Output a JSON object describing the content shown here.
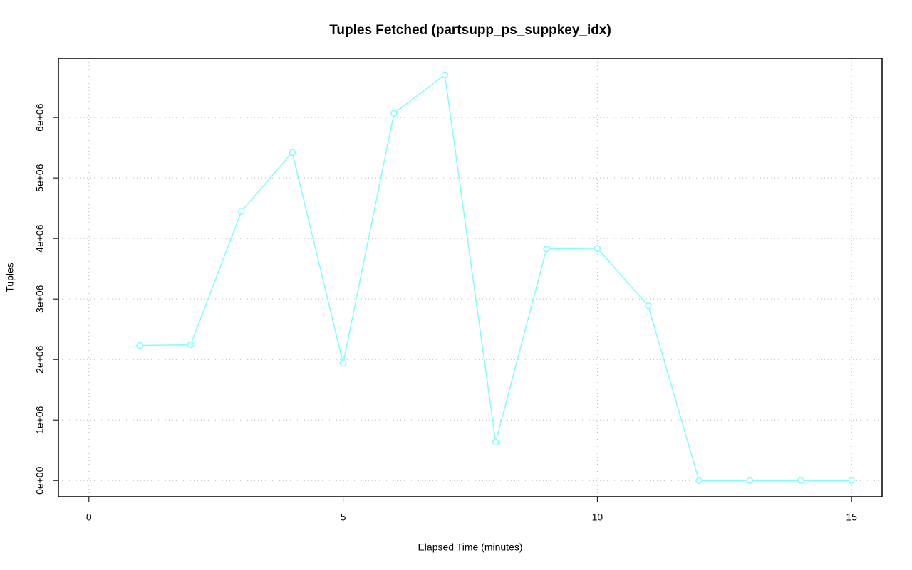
{
  "chart_data": {
    "type": "line",
    "title": "Tuples Fetched (partsupp_ps_suppkey_idx)",
    "x_label": "Elapsed Time (minutes)",
    "y_label": "Tuples",
    "x": [
      1,
      2,
      3,
      4,
      5,
      6,
      7,
      8,
      9,
      10,
      11,
      12,
      13,
      14,
      15
    ],
    "values": [
      2231000,
      2243000,
      4450000,
      5424000,
      1937000,
      6070000,
      6704000,
      634000,
      3828000,
      3839000,
      2888000,
      0,
      0,
      0,
      0
    ],
    "color": "#7fffff",
    "xlim": [
      -0.6,
      15.6
    ],
    "xticks": [
      0,
      5,
      10,
      15
    ],
    "ylim": [
      -268000,
      6978000
    ],
    "yticks": [
      {
        "value": 0,
        "label": "0e+00"
      },
      {
        "value": 1000000,
        "label": "1e+06"
      },
      {
        "value": 2000000,
        "label": "2e+06"
      },
      {
        "value": 3000000,
        "label": "3e+06"
      },
      {
        "value": 4000000,
        "label": "4e+06"
      },
      {
        "value": 5000000,
        "label": "5e+06"
      },
      {
        "value": 6000000,
        "label": "6e+06"
      }
    ],
    "grid": true
  }
}
